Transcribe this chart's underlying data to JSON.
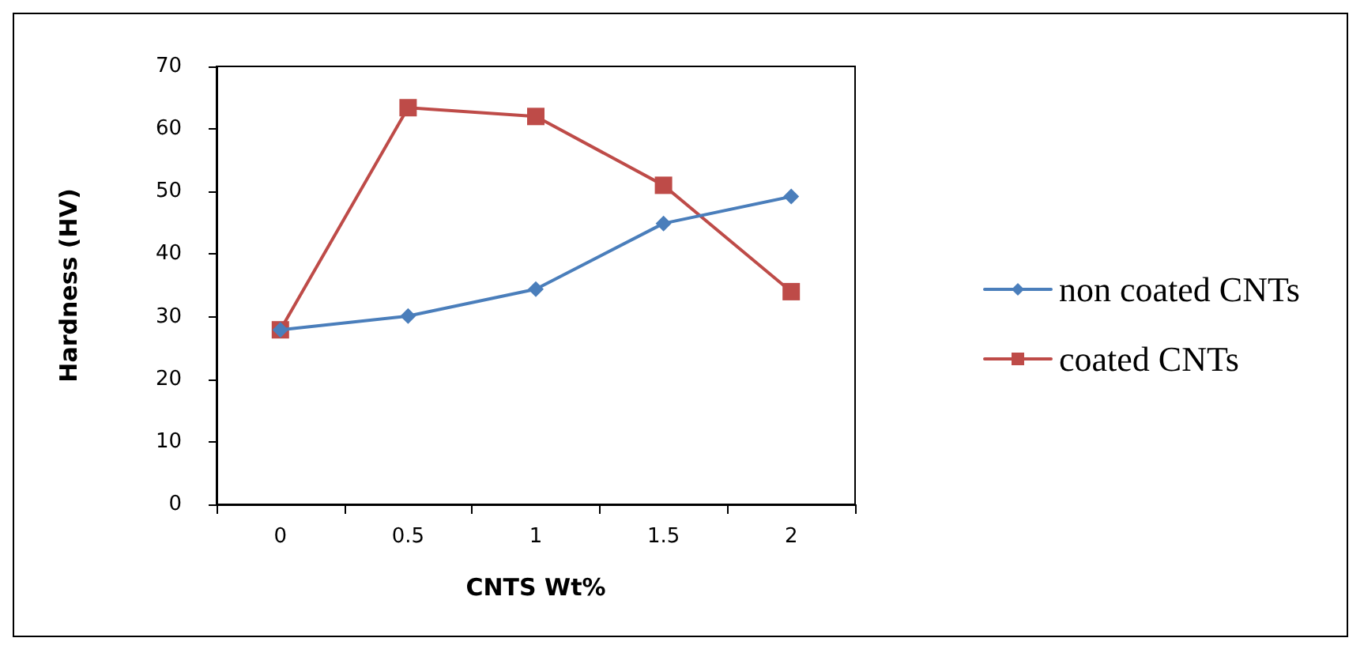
{
  "chart_data": {
    "type": "line",
    "xlabel": "CNTS Wt%",
    "ylabel": "Hardness (HV)",
    "categories": [
      "0",
      "0.5",
      "1",
      "1.5",
      "2"
    ],
    "series": [
      {
        "name": "non coated CNTs",
        "color": "#4a7ebb",
        "marker": "diamond",
        "values": [
          27.9,
          30.1,
          34.4,
          44.9,
          49.2
        ]
      },
      {
        "name": "coated CNTs",
        "color": "#be4b48",
        "marker": "square",
        "values": [
          27.9,
          63.4,
          62.0,
          51.0,
          34.0
        ]
      }
    ],
    "ylim": [
      0,
      70
    ],
    "yticks": [
      0,
      10,
      20,
      30,
      40,
      50,
      60,
      70
    ],
    "grid": false,
    "legend": "right",
    "line_style": "solid"
  }
}
